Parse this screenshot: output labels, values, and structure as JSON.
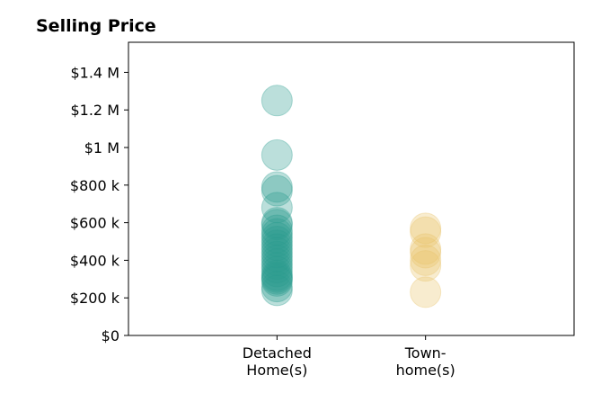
{
  "chart_data": {
    "type": "scatter",
    "title": "Selling Price",
    "xlabel": "",
    "ylabel": "",
    "categories": [
      {
        "lines": [
          "Detached",
          "Home(s)"
        ],
        "key": "detached"
      },
      {
        "lines": [
          "Town-",
          "home(s)"
        ],
        "key": "townhomes"
      }
    ],
    "y_ticks": [
      {
        "value": 0,
        "label": "$0"
      },
      {
        "value": 200000,
        "label": "$200 k"
      },
      {
        "value": 400000,
        "label": "$400 k"
      },
      {
        "value": 600000,
        "label": "$600 k"
      },
      {
        "value": 800000,
        "label": "$800 k"
      },
      {
        "value": 1000000,
        "label": "$1 M"
      },
      {
        "value": 1200000,
        "label": "$1.2 M"
      },
      {
        "value": 1400000,
        "label": "$1.4 M"
      }
    ],
    "ylim": [
      0,
      1560000
    ],
    "xlim": [
      0,
      3
    ],
    "grid": false,
    "series": [
      {
        "category_index": 0,
        "color": "#2a9d8f",
        "values": [
          1250000,
          960000,
          790000,
          770000,
          680000,
          600000,
          590000,
          560000,
          540000,
          520000,
          500000,
          480000,
          460000,
          440000,
          420000,
          400000,
          380000,
          360000,
          340000,
          320000,
          310000,
          300000,
          290000,
          260000,
          240000
        ]
      },
      {
        "category_index": 1,
        "color": "#e9c46a",
        "values": [
          570000,
          550000,
          460000,
          440000,
          400000,
          370000,
          230000
        ]
      }
    ]
  }
}
